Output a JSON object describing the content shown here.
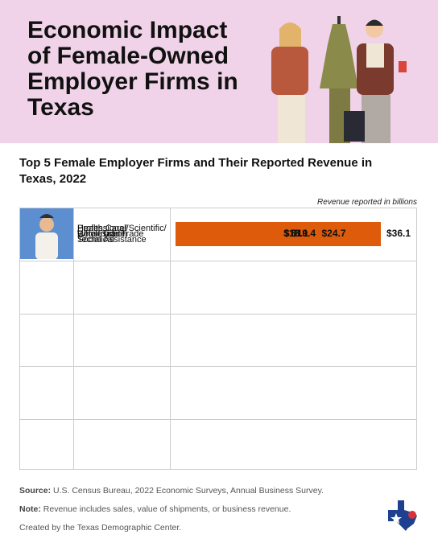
{
  "header": {
    "title": "Economic Impact of Female-Owned Employer Firms in Texas"
  },
  "chart_data": {
    "type": "bar",
    "orientation": "horizontal",
    "title": "Top 5 Female Employer Firms and Their Reported Revenue in Texas, 2022",
    "axis_label": "Revenue reported in billions",
    "categories": [
      "Wholesale Trade",
      "Retail Trade",
      "Construction",
      "Health Care/\nSocial Assistance",
      "Professional/Scientific/\nTechnical"
    ],
    "values": [
      36.1,
      24.7,
      19.4,
      18.1,
      18.0
    ],
    "value_labels": [
      "$36.1",
      "$24.7",
      "$19.4",
      "$18.1",
      "$18.0"
    ],
    "color": "#dd5b0b"
  },
  "footer": {
    "source_label": "Source:",
    "source": "U.S. Census Bureau, 2022 Economic Surveys, Annual Business Survey.",
    "note_label": "Note:",
    "note": "Revenue includes sales, value of shipments, or business revenue.",
    "credit": "Created by the Texas Demographic Center."
  }
}
